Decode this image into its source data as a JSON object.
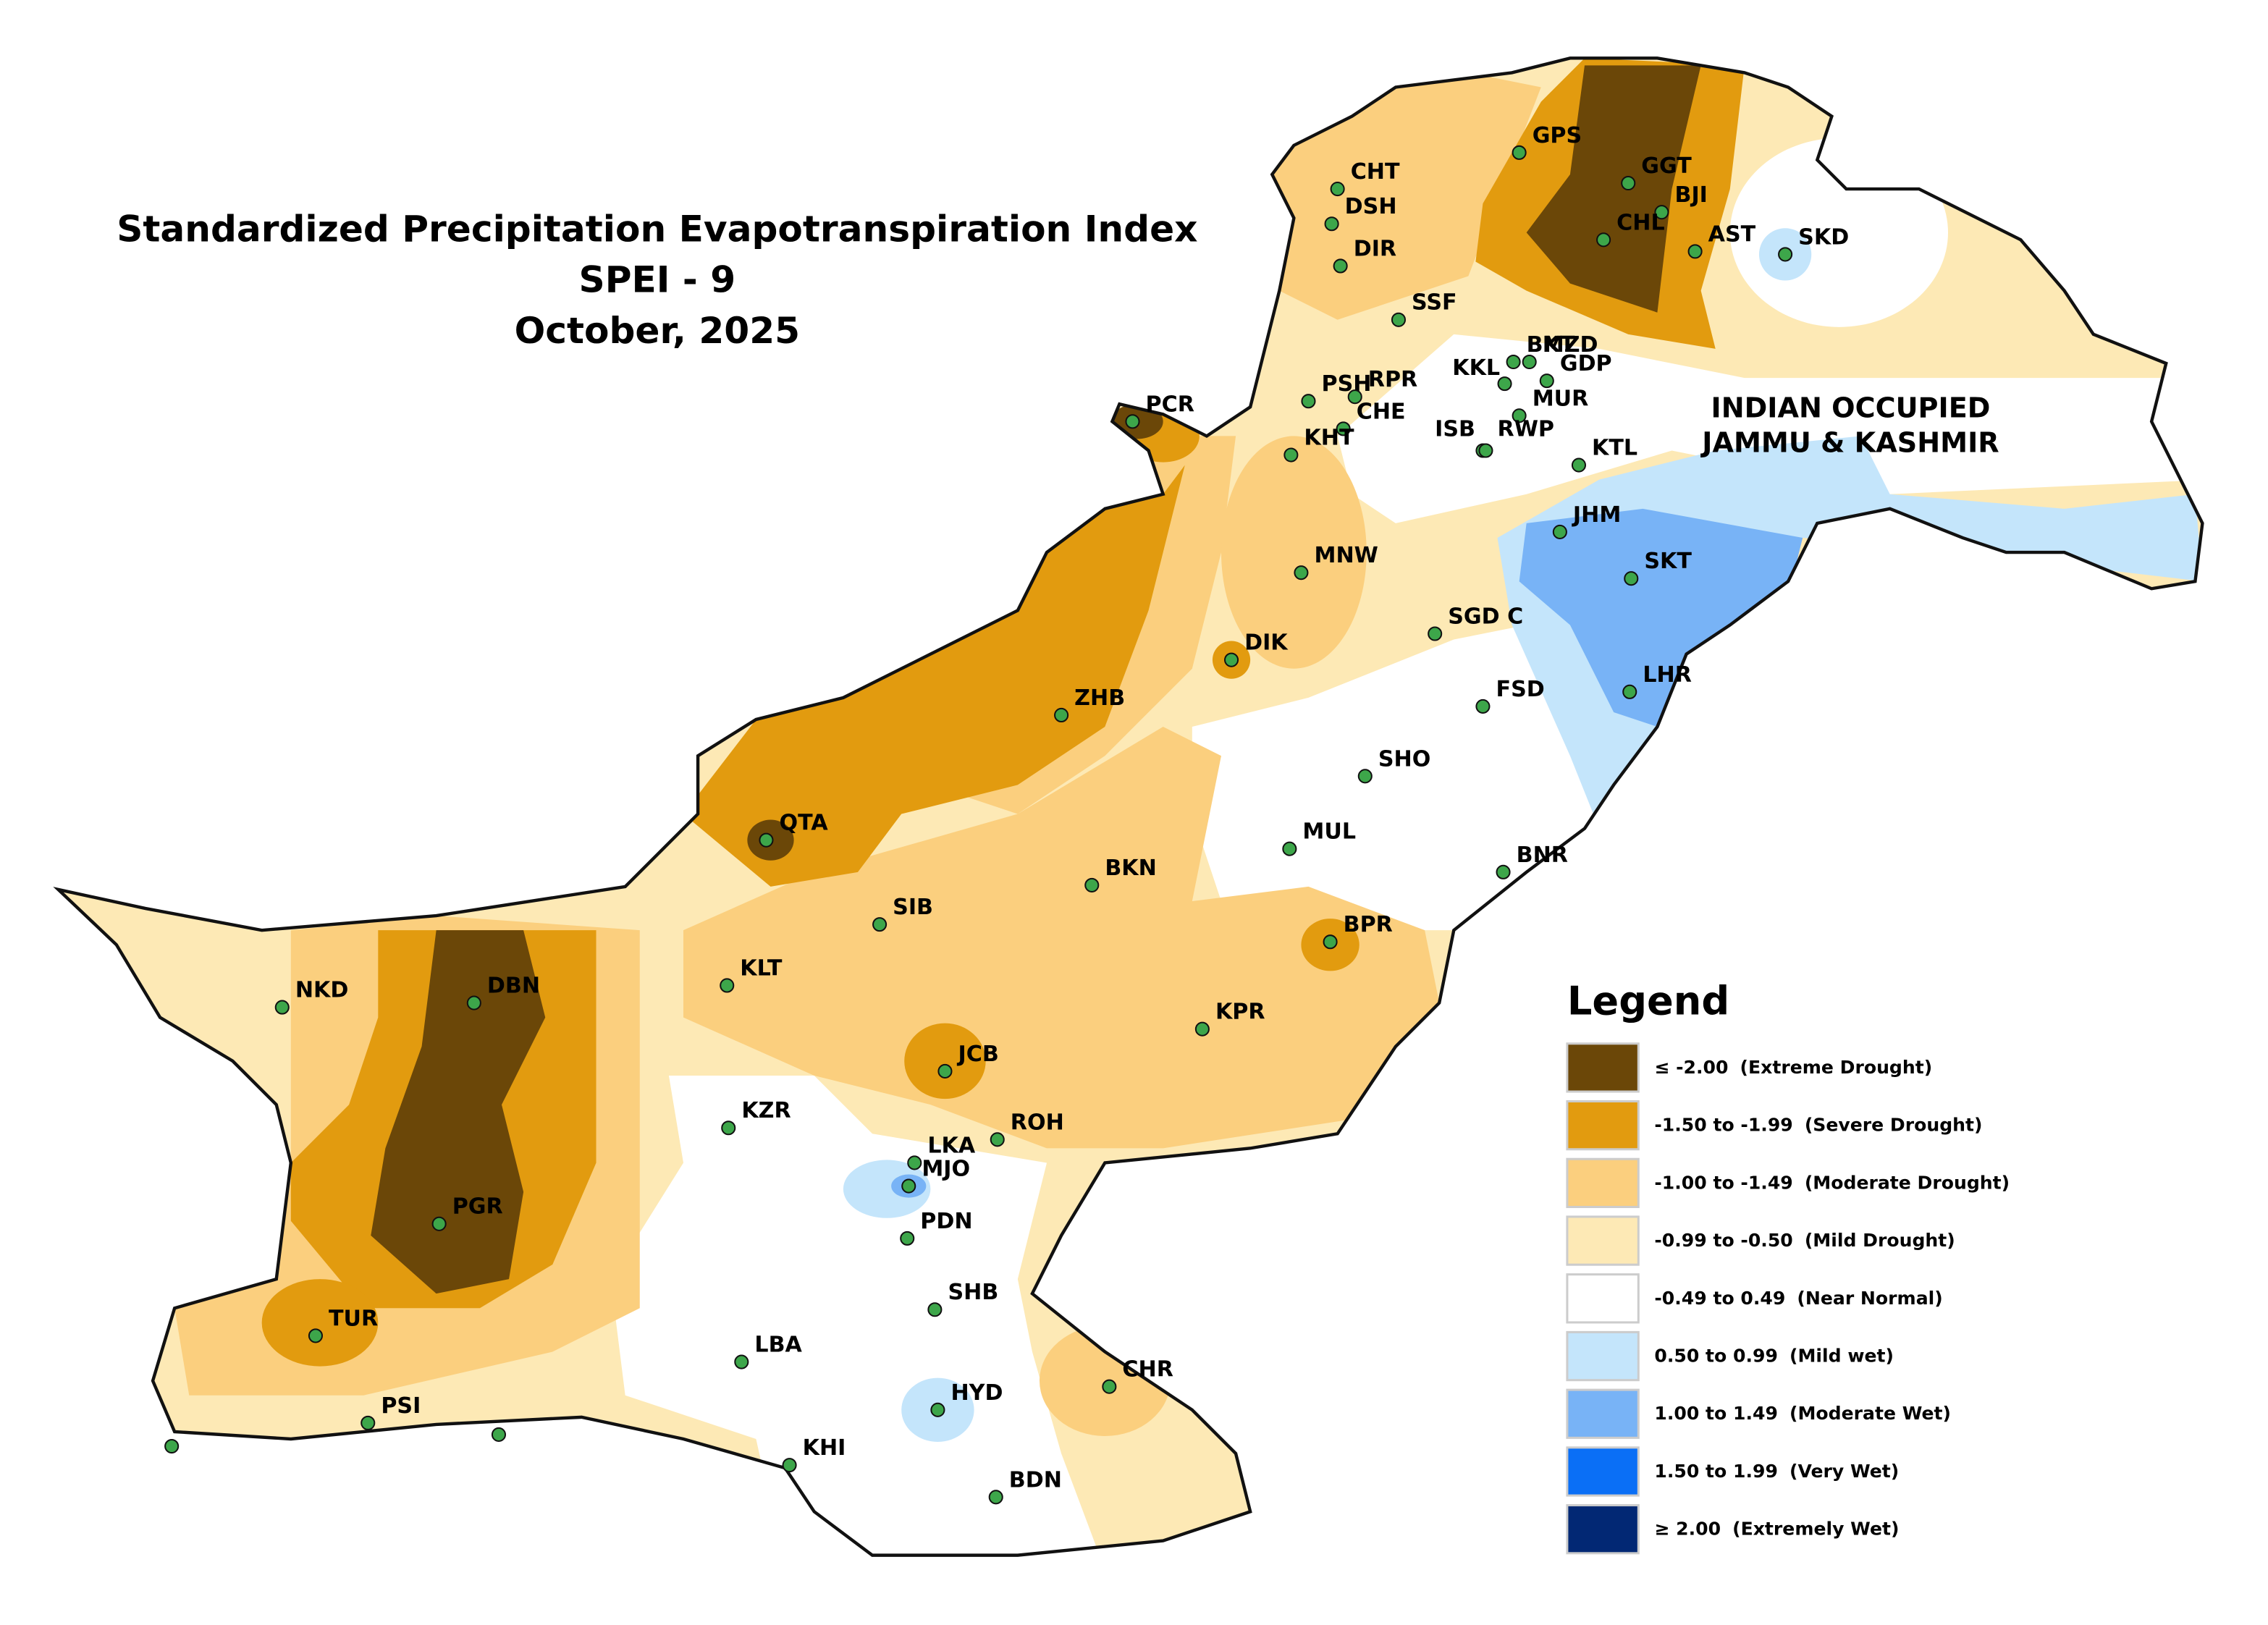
{
  "title": [
    "Standardized Precipitation Evapotranspiration Index",
    "SPEI - 9",
    "October, 2025"
  ],
  "region_label": [
    "INDIAN OCCUPIED",
    "JAMMU & KASHMIR"
  ],
  "stations": [
    "GPS",
    "CHT",
    "DSH",
    "GGT",
    "BJI",
    "CHL",
    "DIR",
    "AST",
    "SKD",
    "SSF",
    "BKT",
    "MZD",
    "KKL",
    "GDP",
    "MUR",
    "PSH",
    "RPR",
    "PCR",
    "CHE",
    "ISB",
    "RWP",
    "KHT",
    "KTL",
    "JHM",
    "MNW",
    "SKT",
    "SGD C",
    "DIK",
    "LHR",
    "FSD",
    "ZHB",
    "SHO",
    "QTA",
    "MUL",
    "BKN",
    "BNR",
    "SIB",
    "BPR",
    "KLT",
    "NKD",
    "DBN",
    "KPR",
    "JCB",
    "KZR",
    "ROH",
    "LKA",
    "MJO",
    "PDN",
    "PGR",
    "SHB",
    "TUR",
    "LBA",
    "CHR",
    "HYD",
    "PSI",
    "KHI",
    "BDN"
  ],
  "legend": {
    "title": "Legend",
    "items": [
      {
        "range": "≤ -2.00",
        "class": "(Extreme Drought)",
        "color": "#6b4708"
      },
      {
        "range": "-1.50 to -1.99",
        "class": "(Severe Drought)",
        "color": "#e29b0f"
      },
      {
        "range": "-1.00 to -1.49",
        "class": "(Moderate Drought)",
        "color": "#fbcf7e"
      },
      {
        "range": "-0.99 to -0.50",
        "class": "(Mild Drought)",
        "color": "#fde9b5"
      },
      {
        "range": "-0.49 to 0.49",
        "class": "(Near Normal)",
        "color": "#ffffff"
      },
      {
        "range": "0.50 to 0.99",
        "class": "(Mild wet)",
        "color": "#c4e5fb"
      },
      {
        "range": "1.00 to 1.49",
        "class": "(Moderate Wet)",
        "color": "#78b3f6"
      },
      {
        "range": "1.50 to 1.99",
        "class": "(Very Wet)",
        "color": "#0a6ff6"
      },
      {
        "range": "≥ 2.00",
        "class": "(Extremely Wet)",
        "color": "#022874"
      }
    ]
  }
}
